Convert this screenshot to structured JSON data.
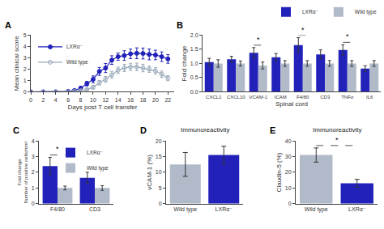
{
  "chart_data": [
    {
      "type": "line",
      "title": "A",
      "xlabel": "Days post T cell transfer",
      "ylabel": "Mean clinical score",
      "x": [
        0,
        2,
        4,
        6,
        7,
        8,
        9,
        10,
        11,
        12,
        13,
        14,
        15,
        16,
        17,
        18,
        19,
        20,
        21,
        22
      ],
      "xlim": [
        0,
        23
      ],
      "xticks": [
        0,
        2,
        4,
        6,
        8,
        10,
        12,
        14,
        16,
        18,
        20,
        22
      ],
      "ylim": [
        0,
        5
      ],
      "yticks": [
        0,
        1,
        2,
        3,
        4,
        5
      ],
      "grid": false,
      "legend": "upper left",
      "series": [
        {
          "name": "LXRα⁻",
          "color": "#2222bb",
          "marker": "circle",
          "values": [
            0,
            0,
            0,
            0.05,
            0.12,
            0.32,
            0.72,
            1.1,
            1.8,
            2.1,
            2.8,
            3.1,
            3.2,
            3.35,
            3.4,
            3.38,
            3.3,
            3.25,
            3.1,
            2.9
          ],
          "err": [
            0,
            0,
            0,
            0.05,
            0.1,
            0.15,
            0.2,
            0.3,
            0.35,
            0.4,
            0.38,
            0.32,
            0.42,
            0.42,
            0.48,
            0.48,
            0.48,
            0.42,
            0.42,
            0.38
          ]
        },
        {
          "name": "Wild type",
          "color": "#9aaabb",
          "marker": "circle-open",
          "values": [
            0,
            0,
            0,
            0.02,
            0.05,
            0.1,
            0.2,
            0.4,
            0.8,
            1.1,
            1.5,
            1.9,
            2.1,
            2.2,
            2.2,
            2.1,
            2.0,
            1.85,
            1.55,
            1.2
          ],
          "err": [
            0,
            0,
            0,
            0.02,
            0.05,
            0.1,
            0.1,
            0.15,
            0.2,
            0.25,
            0.3,
            0.28,
            0.32,
            0.32,
            0.33,
            0.33,
            0.28,
            0.28,
            0.28,
            0.22
          ]
        }
      ]
    },
    {
      "type": "bar",
      "title": "B",
      "xlabel": "Spinal cord",
      "ylabel": "Fold change",
      "categories": [
        "CXCL1",
        "CXCL10",
        "VCAM-1",
        "ICAM",
        "F4/80",
        "CD3",
        "TNFα",
        "IL6"
      ],
      "ylim": [
        0.0,
        2.0
      ],
      "yticks": [
        {
          "value": 0.0,
          "label": "0.0"
        },
        0.5,
        {
          "value": 1.0,
          "label": "1.0"
        },
        1.5,
        {
          "value": 2.0,
          "label": "2.0"
        }
      ],
      "grid": false,
      "legend": "upper right",
      "series": [
        {
          "name": "LXRα⁻",
          "color": "#2222bb",
          "values": [
            1.05,
            1.15,
            1.38,
            1.22,
            1.65,
            1.32,
            1.48,
            0.82
          ],
          "err": [
            0.13,
            0.1,
            0.18,
            0.13,
            0.26,
            0.16,
            0.18,
            0.1
          ]
        },
        {
          "name": "Wild type",
          "color": "#b0bac8",
          "values": [
            1.0,
            1.0,
            0.93,
            1.0,
            1.0,
            1.0,
            1.0,
            1.0
          ],
          "err": [
            0.13,
            0.09,
            0.12,
            0.1,
            0.1,
            0.1,
            0.1,
            0.1
          ]
        }
      ],
      "annotations": [
        {
          "x": "VCAM-1",
          "text": "*"
        },
        {
          "x": "F4/80",
          "text": "*"
        },
        {
          "x": "TNFα",
          "text": "*"
        }
      ]
    },
    {
      "type": "bar",
      "title": "C",
      "ylabel": "Fold change\nNumber of positive cells/mm²",
      "categories": [
        "F4/80",
        "CD3"
      ],
      "ylim": [
        0,
        4
      ],
      "yticks": [
        0,
        1,
        2,
        3,
        4
      ],
      "grid": false,
      "legend": "upper right",
      "series": [
        {
          "name": "LXRα⁻",
          "color": "#2222bb",
          "values": [
            2.4,
            1.65
          ],
          "err": [
            0.55,
            0.35
          ]
        },
        {
          "name": "Wild type",
          "color": "#b0bac8",
          "values": [
            1.0,
            1.0
          ],
          "err": [
            0.12,
            0.15
          ]
        }
      ],
      "annotations": [
        {
          "x": "F4/80",
          "text": "*"
        }
      ]
    },
    {
      "type": "bar",
      "title": "D",
      "subtitle": "Immunoreactivity",
      "ylabel": "vCAM-1 (%)",
      "categories": [
        "Wild type",
        "LXRα⁻"
      ],
      "values": [
        12.5,
        15.5
      ],
      "err": [
        3.8,
        2.8
      ],
      "colors": [
        "#b0bac8",
        "#2222bb"
      ],
      "ylim": [
        0,
        20
      ],
      "yticks": [
        0,
        5,
        10,
        15,
        20
      ],
      "grid": false
    },
    {
      "type": "bar",
      "title": "E",
      "subtitle": "Immunoreactivity",
      "ylabel": "Claudin-5 (%)",
      "categories": [
        "Wild type",
        "LXRα⁻"
      ],
      "values": [
        31.0,
        13.0
      ],
      "err": [
        4.5,
        2.5
      ],
      "colors": [
        "#b0bac8",
        "#2222bb"
      ],
      "ylim": [
        0,
        40
      ],
      "yticks": [
        0,
        10,
        20,
        30,
        40
      ],
      "grid": false,
      "annotations": [
        {
          "x": [
            "Wild type",
            "LXRα⁻"
          ],
          "text": "*"
        }
      ]
    }
  ]
}
